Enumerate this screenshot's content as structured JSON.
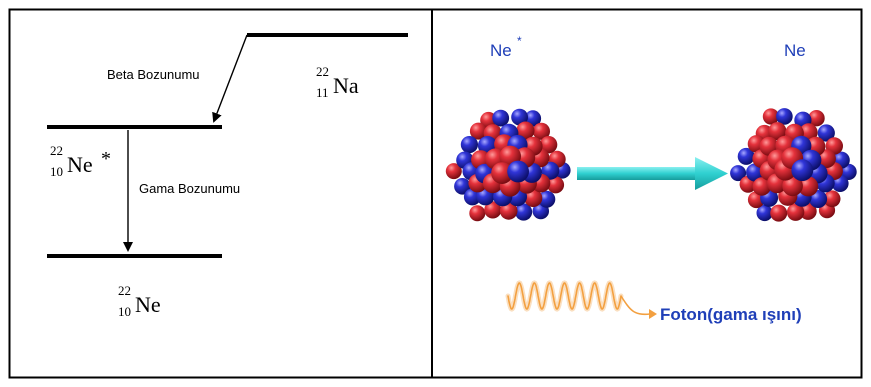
{
  "left_panel": {
    "beta_label": "Beta Bozunumu",
    "gamma_label": "Gama Bozunumu",
    "na_nuclide": {
      "mass": "22",
      "atomic": "11",
      "symbol": "Na"
    },
    "ne_excited_nuclide": {
      "mass": "22",
      "atomic": "10",
      "symbol": "Ne",
      "mark": "*"
    },
    "ne_ground_nuclide": {
      "mass": "22",
      "atomic": "10",
      "symbol": "Ne"
    }
  },
  "right_panel": {
    "ne_excited_label": {
      "symbol": "Ne",
      "mark": "*"
    },
    "ne_label": "Ne",
    "photon_label": "Foton(gama ışını)"
  },
  "colors": {
    "proton": "#d81e2a",
    "neutron": "#2a2fd0",
    "arrow": "#33d6d6",
    "label_blue": "#1f3fb8",
    "wave": "#f0a24a"
  }
}
